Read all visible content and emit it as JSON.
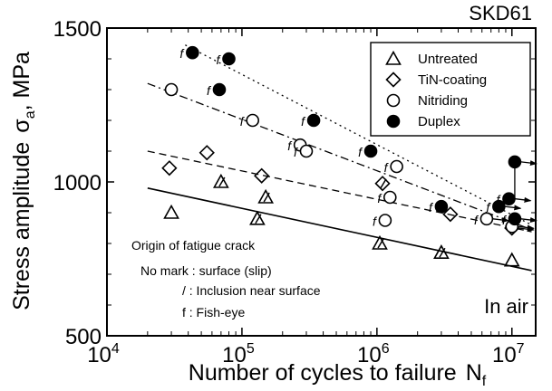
{
  "chart_data": {
    "type": "scatter",
    "title": "SKD61",
    "xlabel": "Number of cycles to failure",
    "xlabel_sub": "N",
    "xlabel_subscript": "f",
    "ylabel": "Stress amplitude",
    "ylabel_symbol": "σ",
    "ylabel_subscript": "a",
    "ylabel_unit": ",  MPa",
    "x_scale": "log",
    "xlim": [
      10000,
      15000000
    ],
    "ylim": [
      500,
      1500
    ],
    "x_ticks": [
      {
        "value": 10000,
        "base": "10",
        "exp": "4"
      },
      {
        "value": 100000,
        "base": "10",
        "exp": "5"
      },
      {
        "value": 1000000,
        "base": "10",
        "exp": "6"
      },
      {
        "value": 10000000,
        "base": "10",
        "exp": "7"
      }
    ],
    "y_ticks": [
      {
        "value": 500,
        "label": "500"
      },
      {
        "value": 1000,
        "label": "1000"
      },
      {
        "value": 1500,
        "label": "1500"
      }
    ],
    "grid": false,
    "legend_position": "top-right",
    "corner_label": "In air",
    "notes": [
      "Origin of fatigue crack",
      "No mark : surface (slip)",
      "/ : Inclusion near surface",
      "f : Fish-eye"
    ],
    "series": [
      {
        "name": "Untreated",
        "marker": "triangle",
        "color": "#000000",
        "fill": "none",
        "fit": {
          "type": "solid",
          "from": [
            20000,
            980
          ],
          "to": [
            14000000,
            712
          ]
        },
        "points": [
          {
            "x": 30000,
            "y": 900,
            "mark": ""
          },
          {
            "x": 70000,
            "y": 1000,
            "mark": "/"
          },
          {
            "x": 130000,
            "y": 880,
            "mark": "/"
          },
          {
            "x": 150000,
            "y": 950,
            "mark": "/"
          },
          {
            "x": 1050000,
            "y": 800,
            "mark": "/"
          },
          {
            "x": 3000000,
            "y": 770,
            "mark": "/"
          },
          {
            "x": 10000000,
            "y": 745,
            "mark": "",
            "runout": false
          }
        ]
      },
      {
        "name": "TiN-coating",
        "marker": "diamond",
        "color": "#000000",
        "fill": "none",
        "fit": {
          "type": "dashed",
          "from": [
            20000,
            1100
          ],
          "to": [
            14000000,
            838
          ]
        },
        "points": [
          {
            "x": 29000,
            "y": 1045,
            "mark": ""
          },
          {
            "x": 55000,
            "y": 1095,
            "mark": ""
          },
          {
            "x": 140000,
            "y": 1020,
            "mark": ""
          },
          {
            "x": 1100000,
            "y": 995,
            "mark": "/"
          },
          {
            "x": 3500000,
            "y": 895,
            "mark": ""
          },
          {
            "x": 10000000,
            "y": 850,
            "mark": "",
            "runout": true
          }
        ]
      },
      {
        "name": "Nitriding",
        "marker": "circle",
        "color": "#000000",
        "fill": "none",
        "fit": {
          "type": "dash-dot",
          "from": [
            20000,
            1320
          ],
          "to": [
            14000000,
            845
          ]
        },
        "points": [
          {
            "x": 30000,
            "y": 1300,
            "mark": ""
          },
          {
            "x": 120000,
            "y": 1200,
            "mark": "f"
          },
          {
            "x": 270000,
            "y": 1120,
            "mark": "f"
          },
          {
            "x": 300000,
            "y": 1100,
            "mark": "f"
          },
          {
            "x": 1250000,
            "y": 950,
            "mark": "f"
          },
          {
            "x": 1400000,
            "y": 1050,
            "mark": "f"
          },
          {
            "x": 1150000,
            "y": 875,
            "mark": "f"
          },
          {
            "x": 6500000,
            "y": 880,
            "mark": "f",
            "runout": true
          },
          {
            "x": 10000000,
            "y": 855,
            "mark": "",
            "runout": true
          }
        ]
      },
      {
        "name": "Duplex",
        "marker": "circle",
        "color": "#000000",
        "fill": "#000000",
        "fit": {
          "type": "dotted",
          "from": [
            38000,
            1445
          ],
          "to": [
            14000000,
            860
          ]
        },
        "points": [
          {
            "x": 43000,
            "y": 1420,
            "mark": "f"
          },
          {
            "x": 80000,
            "y": 1400,
            "mark": "f"
          },
          {
            "x": 68000,
            "y": 1300,
            "mark": "f"
          },
          {
            "x": 340000,
            "y": 1200,
            "mark": "f"
          },
          {
            "x": 900000,
            "y": 1100,
            "mark": "f"
          },
          {
            "x": 3000000,
            "y": 920,
            "mark": "f"
          },
          {
            "x": 8000000,
            "y": 920,
            "mark": "f",
            "runout": true
          },
          {
            "x": 9500000,
            "y": 945,
            "mark": "f",
            "runout": true
          },
          {
            "x": 10500000,
            "y": 1065,
            "mark": "",
            "runout": true
          },
          {
            "x": 10500000,
            "y": 880,
            "mark": "f",
            "runout": true
          }
        ]
      }
    ]
  }
}
